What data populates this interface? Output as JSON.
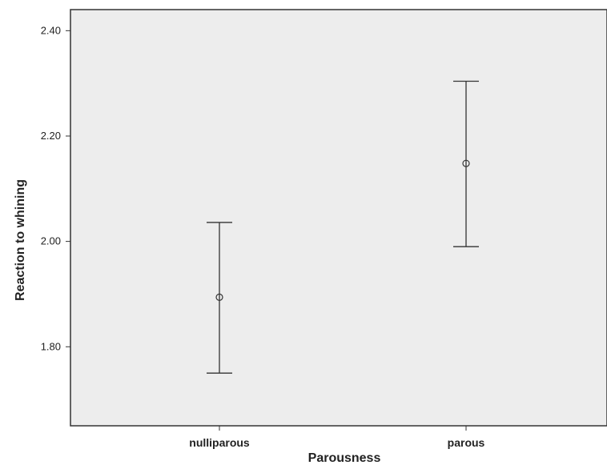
{
  "chart_data": {
    "type": "errorbar",
    "xlabel": "Parousness",
    "ylabel": "Reaction to whining",
    "categories": [
      "nulliparous",
      "parous"
    ],
    "series": [
      {
        "points": [
          {
            "category": "nulliparous",
            "mean": 1.894,
            "lower": 1.75,
            "upper": 2.036
          },
          {
            "category": "parous",
            "mean": 2.148,
            "lower": 1.99,
            "upper": 2.304
          }
        ]
      }
    ],
    "yticks": [
      "1.80",
      "2.00",
      "2.20",
      "2.40"
    ],
    "ylim": [
      1.65,
      2.44
    ],
    "grid": false,
    "legend": "none"
  },
  "colors": {
    "plot_background": "#ededed",
    "axis": "#333333",
    "marks": "#333333"
  }
}
